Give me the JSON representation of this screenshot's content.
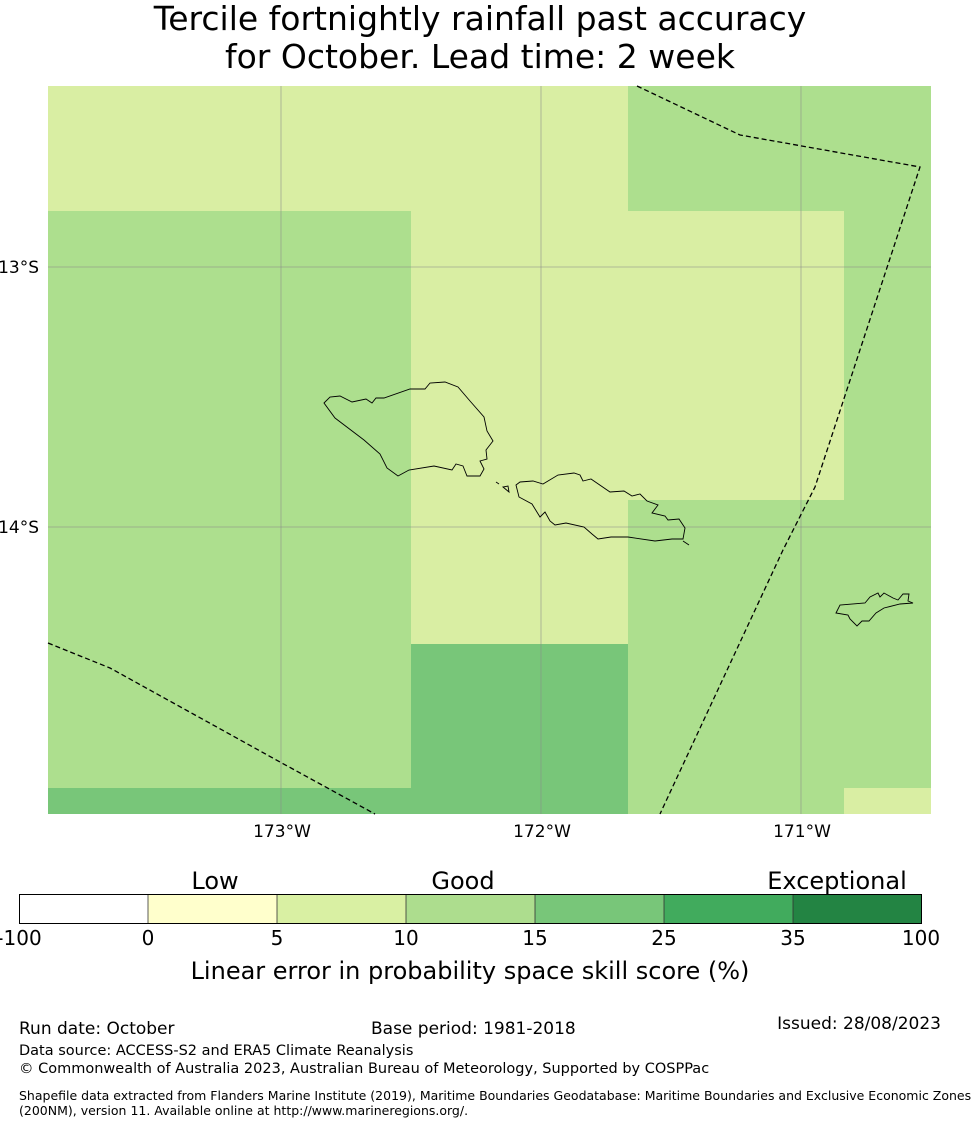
{
  "title": {
    "line1": "Tercile fortnightly rainfall past accuracy",
    "line2": "for October. Lead time: 2 week"
  },
  "map": {
    "lat_labels": [
      "13°S",
      "14°S"
    ],
    "lon_labels": [
      "173°W",
      "172°W",
      "171°W"
    ],
    "extent": {
      "lon_min": -173.9,
      "lon_max": -170.5,
      "lat_min": -15.1,
      "lat_max": -12.3
    },
    "skill_categories": [
      "10–15",
      "5–10",
      "15–25"
    ],
    "colors": {
      "skill_5_10": "#d9eea3",
      "skill_10_15": "#addf8e",
      "skill_15_25": "#78c679",
      "coastline": "#000000",
      "eez_boundary": "#000000",
      "gridline": "#8a8a8a"
    }
  },
  "colorbar": {
    "category_labels": [
      "Low",
      "Good",
      "Exceptional"
    ],
    "bounds": [
      "-100",
      "0",
      "5",
      "10",
      "15",
      "25",
      "35",
      "100"
    ],
    "colors": [
      "#ffffff",
      "#ffffcc",
      "#d9f0a3",
      "#addd8e",
      "#78c679",
      "#41ab5d",
      "#238443"
    ],
    "caption": "Linear error in probability space skill score (%)"
  },
  "footer": {
    "run_date": "Run date: October",
    "base_period": "Base period: 1981-2018",
    "issued": "Issued: 28/08/2023",
    "data_source": "Data source: ACCESS-S2 and ERA5 Climate Reanalysis",
    "copyright": "© Commonwealth of Australia 2023, Australian Bureau of Meteorology, Supported by COSPPac",
    "shapefile_line1": "Shapefile data extracted from Flanders Marine Institute (2019), Maritime Boundaries Geodatabase: Maritime Boundaries and Exclusive Economic Zones",
    "shapefile_line2": "(200NM), version 11. Available online at http://www.marineregions.org/."
  }
}
